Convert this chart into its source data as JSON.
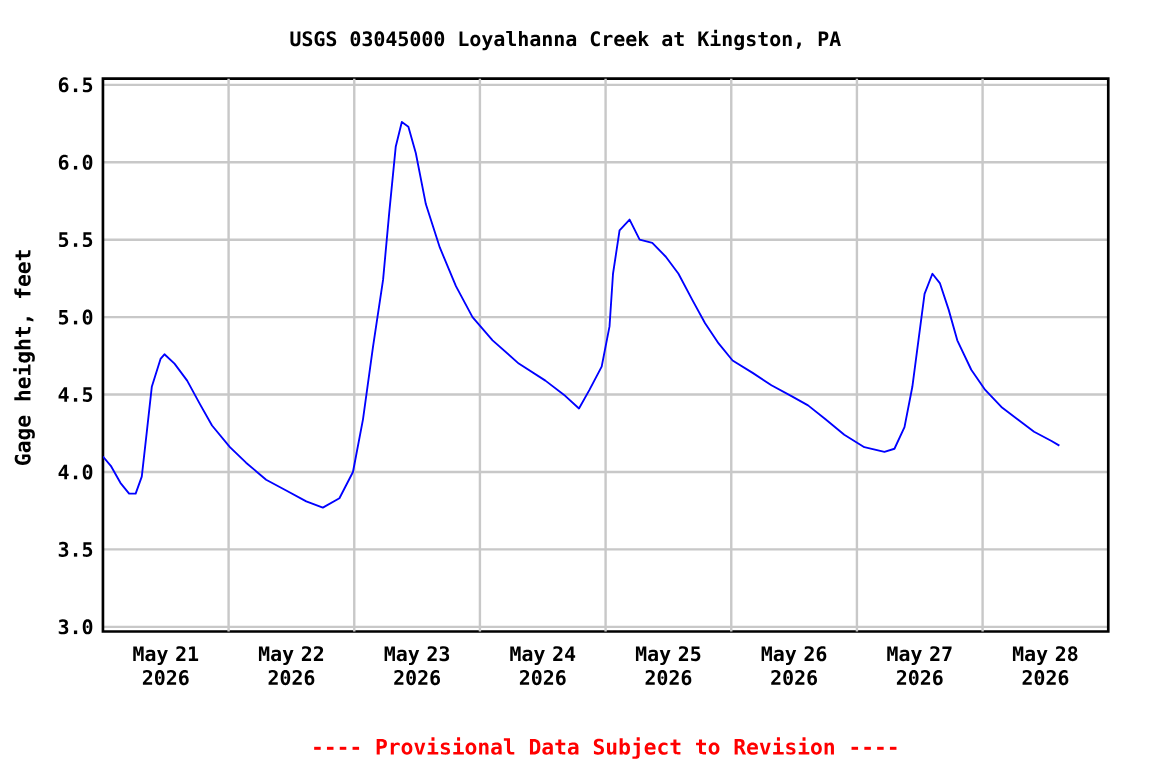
{
  "chart_data": {
    "type": "line",
    "title": "USGS 03045000 Loyalhanna Creek at Kingston, PA",
    "ylabel": "Gage height, feet",
    "color": "#0000ff",
    "grid": true,
    "xlim": [
      "2026-05-21T00:00",
      "2026-05-29T00:00"
    ],
    "ylim": [
      2.97,
      6.54
    ],
    "yticks": [
      {
        "value": 3,
        "label": "3.0"
      },
      {
        "value": 3.5,
        "label": "3.5"
      },
      {
        "value": 4,
        "label": "4.0"
      },
      {
        "value": 4.5,
        "label": "4.5"
      },
      {
        "value": 5,
        "label": "5.0"
      },
      {
        "value": 5.5,
        "label": "5.5"
      },
      {
        "value": 6,
        "label": "6.0"
      },
      {
        "value": 6.5,
        "label": "6.5"
      }
    ],
    "xticks": [
      {
        "value": "2026-05-21T12:00",
        "label": "May 21 2026"
      },
      {
        "value": "2026-05-22T12:00",
        "label": "May 22 2026"
      },
      {
        "value": "2026-05-23T12:00",
        "label": "May 23 2026"
      },
      {
        "value": "2026-05-24T12:00",
        "label": "May 24 2026"
      },
      {
        "value": "2026-05-25T12:00",
        "label": "May 25 2026"
      },
      {
        "value": "2026-05-26T12:00",
        "label": "May 26 2026"
      },
      {
        "value": "2026-05-27T12:00",
        "label": "May 27 2026"
      },
      {
        "value": "2026-05-28T12:00",
        "label": "May 28 2026"
      },
      {
        "value": "2026-05-22T00:00",
        "label": null
      },
      {
        "value": "2026-05-23T00:00",
        "label": null
      },
      {
        "value": "2026-05-24T00:00",
        "label": null
      },
      {
        "value": "2026-05-25T00:00",
        "label": null
      },
      {
        "value": "2026-05-26T00:00",
        "label": null
      },
      {
        "value": "2026-05-27T00:00",
        "label": null
      },
      {
        "value": "2026-05-28T00:00",
        "label": null
      }
    ],
    "x": [
      "2026-05-21T00:00",
      "2026-05-21T01:30",
      "2026-05-21T03:20",
      "2026-05-21T05:00",
      "2026-05-21T06:15",
      "2026-05-21T07:25",
      "2026-05-21T08:25",
      "2026-05-21T09:20",
      "2026-05-21T11:00",
      "2026-05-21T11:45",
      "2026-05-21T13:40",
      "2026-05-21T16:05",
      "2026-05-21T18:30",
      "2026-05-21T20:50",
      "2026-05-22T00:15",
      "2026-05-22T03:20",
      "2026-05-22T07:10",
      "2026-05-22T11:00",
      "2026-05-22T14:50",
      "2026-05-22T18:00",
      "2026-05-22T21:10",
      "2026-05-22T23:45",
      "2026-05-23T01:40",
      "2026-05-23T03:35",
      "2026-05-23T05:30",
      "2026-05-23T06:40",
      "2026-05-23T07:55",
      "2026-05-23T09:05",
      "2026-05-23T10:20",
      "2026-05-23T11:45",
      "2026-05-23T13:40",
      "2026-05-23T16:20",
      "2026-05-23T19:25",
      "2026-05-23T22:35",
      "2026-05-24T02:25",
      "2026-05-24T07:25",
      "2026-05-24T12:30",
      "2026-05-24T16:20",
      "2026-05-24T18:55",
      "2026-05-24T20:55",
      "2026-05-24T23:15",
      "2026-05-25T00:45",
      "2026-05-25T01:25",
      "2026-05-25T02:40",
      "2026-05-25T04:35",
      "2026-05-25T06:30",
      "2026-05-25T08:55",
      "2026-05-25T11:30",
      "2026-05-25T13:55",
      "2026-05-25T16:35",
      "2026-05-25T19:00",
      "2026-05-25T21:35",
      "2026-05-26T00:15",
      "2026-05-26T04:05",
      "2026-05-26T07:40",
      "2026-05-26T11:30",
      "2026-05-26T14:40",
      "2026-05-26T18:00",
      "2026-05-26T21:35",
      "2026-05-27T01:25",
      "2026-05-27T05:15",
      "2026-05-27T07:10",
      "2026-05-27T09:05",
      "2026-05-27T10:35",
      "2026-05-27T11:45",
      "2026-05-27T12:55",
      "2026-05-27T14:25",
      "2026-05-27T15:50",
      "2026-05-27T17:30",
      "2026-05-27T19:10",
      "2026-05-27T21:50",
      "2026-05-28T00:30",
      "2026-05-28T03:35",
      "2026-05-28T06:40",
      "2026-05-28T09:50",
      "2026-05-28T13:10",
      "2026-05-28T14:40"
    ],
    "values": [
      4.1,
      4.04,
      3.93,
      3.86,
      3.86,
      3.97,
      4.27,
      4.55,
      4.73,
      4.76,
      4.7,
      4.59,
      4.44,
      4.3,
      4.16,
      4.06,
      3.95,
      3.88,
      3.81,
      3.77,
      3.83,
      4.0,
      4.34,
      4.81,
      5.24,
      5.67,
      6.1,
      6.26,
      6.23,
      6.06,
      5.73,
      5.45,
      5.2,
      5.0,
      4.85,
      4.7,
      4.59,
      4.49,
      4.41,
      4.53,
      4.68,
      4.94,
      5.28,
      5.56,
      5.63,
      5.5,
      5.48,
      5.39,
      5.28,
      5.11,
      4.96,
      4.83,
      4.72,
      4.64,
      4.56,
      4.49,
      4.43,
      4.34,
      4.24,
      4.16,
      4.13,
      4.15,
      4.29,
      4.55,
      4.85,
      5.15,
      5.28,
      5.22,
      5.05,
      4.85,
      4.66,
      4.53,
      4.42,
      4.34,
      4.26,
      4.2,
      4.17
    ],
    "annotations": [
      "---- Provisional Data Subject to Revision ----"
    ]
  }
}
